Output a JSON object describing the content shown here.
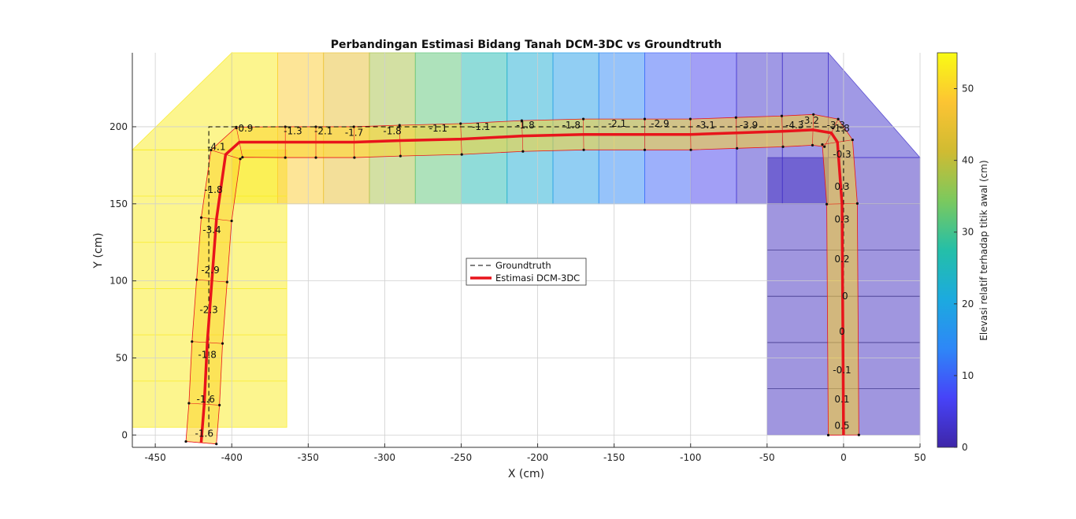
{
  "chart_data": {
    "type": "scatter",
    "title": "Perbandingan Estimasi Bidang Tanah DCM-3DC vs Groundtruth",
    "xlabel": "X (cm)",
    "ylabel": "Y (cm)",
    "xlim": [
      -465,
      50
    ],
    "ylim": [
      -8,
      248
    ],
    "x_ticks": [
      "-450",
      "-400",
      "-350",
      "-300",
      "-250",
      "-200",
      "-150",
      "-100",
      "-50",
      "0",
      "50"
    ],
    "x_tick_values": [
      -450,
      -400,
      -350,
      -300,
      -250,
      -200,
      -150,
      -100,
      -50,
      0,
      50
    ],
    "y_ticks": [
      "0",
      "50",
      "100",
      "150",
      "200"
    ],
    "y_tick_values": [
      0,
      50,
      100,
      150,
      200
    ],
    "grid": true,
    "legend_position": "center",
    "colorbar": {
      "label": "Elevasi relatif terhadap titik awal (cm)",
      "range": [
        0,
        55
      ],
      "tick_labels": [
        "0",
        "10",
        "20",
        "30",
        "40",
        "50"
      ],
      "tick_values": [
        0,
        10,
        20,
        30,
        40,
        50
      ],
      "colormap": [
        "#3e26a8",
        "#4743f8",
        "#2e87f7",
        "#1caadf",
        "#24bfa8",
        "#7bc95e",
        "#d0bb32",
        "#fcc433",
        "#f9fb14"
      ]
    },
    "series": [
      {
        "name": "Groundtruth",
        "style": "dashed",
        "color": "#000000",
        "x": [
          -415,
          -415,
          -415,
          -400,
          0,
          0
        ],
        "y": [
          0,
          180,
          200,
          200,
          200,
          0
        ]
      },
      {
        "name": "Estimasi DCM-3DC",
        "style": "solid",
        "color": "#e8141b",
        "x": [
          -420,
          -418,
          -416,
          -413,
          -410,
          -404,
          -395,
          -365,
          -345,
          -320,
          -290,
          -250,
          -210,
          -170,
          -130,
          -100,
          -70,
          -40,
          -20,
          -8,
          -4,
          -1,
          0
        ],
        "y": [
          -5,
          20,
          60,
          100,
          140,
          182,
          190,
          190,
          190,
          190,
          191,
          192,
          194,
          195,
          195,
          195,
          196,
          197,
          198,
          196,
          190,
          150,
          0
        ]
      }
    ],
    "background_zones": [
      {
        "x0": -465,
        "x1": -364,
        "y0": 5,
        "y1": 185,
        "value": 53
      },
      {
        "x0": -400,
        "x1": -370,
        "y0": 150,
        "y1": 248,
        "value": 53
      },
      {
        "x0": -370,
        "x1": -340,
        "y0": 150,
        "y1": 248,
        "value": 49
      },
      {
        "x0": -340,
        "x1": -310,
        "y0": 150,
        "y1": 248,
        "value": 45
      },
      {
        "x0": -310,
        "x1": -280,
        "y0": 150,
        "y1": 248,
        "value": 38
      },
      {
        "x0": -280,
        "x1": -250,
        "y0": 150,
        "y1": 248,
        "value": 32
      },
      {
        "x0": -250,
        "x1": -220,
        "y0": 150,
        "y1": 248,
        "value": 26
      },
      {
        "x0": -220,
        "x1": -190,
        "y0": 150,
        "y1": 248,
        "value": 22
      },
      {
        "x0": -190,
        "x1": -160,
        "y0": 150,
        "y1": 248,
        "value": 18
      },
      {
        "x0": -160,
        "x1": -130,
        "y0": 150,
        "y1": 248,
        "value": 14
      },
      {
        "x0": -130,
        "x1": -100,
        "y0": 150,
        "y1": 248,
        "value": 10
      },
      {
        "x0": -100,
        "x1": -70,
        "y0": 150,
        "y1": 248,
        "value": 6
      },
      {
        "x0": -70,
        "x1": -40,
        "y0": 150,
        "y1": 248,
        "value": 3
      },
      {
        "x0": -40,
        "x1": -10,
        "y0": 150,
        "y1": 248,
        "value": 3
      },
      {
        "x0": -50,
        "x1": 50,
        "y0": 0,
        "y1": 180,
        "value": 2
      }
    ],
    "segment_labels": [
      {
        "text": "-0.9",
        "x": -392,
        "y": 197
      },
      {
        "text": "-1.3",
        "x": -360,
        "y": 195
      },
      {
        "text": "-2.1",
        "x": -340,
        "y": 195
      },
      {
        "text": "-1.7",
        "x": -320,
        "y": 194
      },
      {
        "text": "-1.8",
        "x": -295,
        "y": 195
      },
      {
        "text": "-1.1",
        "x": -265,
        "y": 197
      },
      {
        "text": "-1.1",
        "x": -237,
        "y": 198
      },
      {
        "text": "-1.8",
        "x": -208,
        "y": 199
      },
      {
        "text": "-1.8",
        "x": -178,
        "y": 199
      },
      {
        "text": "-2.1",
        "x": -148,
        "y": 200
      },
      {
        "text": "-2.9",
        "x": -120,
        "y": 200
      },
      {
        "text": "-3.1",
        "x": -90,
        "y": 199
      },
      {
        "text": "-3.9",
        "x": -62,
        "y": 199
      },
      {
        "text": "-4.3",
        "x": -32,
        "y": 199
      },
      {
        "text": "-3.3",
        "x": -5,
        "y": 199
      },
      {
        "text": "-3.2",
        "x": -22,
        "y": 202
      },
      {
        "text": "-1.8",
        "x": -2,
        "y": 197
      },
      {
        "text": "-4.1",
        "x": -410,
        "y": 185
      },
      {
        "text": "-1.8",
        "x": -412,
        "y": 157
      },
      {
        "text": "-3.4",
        "x": -413,
        "y": 131
      },
      {
        "text": "-2.9",
        "x": -414,
        "y": 105
      },
      {
        "text": "-2.3",
        "x": -415,
        "y": 79
      },
      {
        "text": "-1.8",
        "x": -416,
        "y": 50
      },
      {
        "text": "-1.6",
        "x": -417,
        "y": 21
      },
      {
        "text": "-1.6",
        "x": -418,
        "y": -1
      },
      {
        "text": "-0.3",
        "x": -1,
        "y": 180
      },
      {
        "text": "0.3",
        "x": -1,
        "y": 159
      },
      {
        "text": "0.3",
        "x": -1,
        "y": 138
      },
      {
        "text": "0.2",
        "x": -1,
        "y": 112
      },
      {
        "text": "0",
        "x": 1,
        "y": 88
      },
      {
        "text": "0",
        "x": -1,
        "y": 65
      },
      {
        "text": "-0.1",
        "x": -1,
        "y": 40
      },
      {
        "text": "0.1",
        "x": -1,
        "y": 21
      },
      {
        "text": "0.5",
        "x": -1,
        "y": 4
      }
    ],
    "corridor_fill_value": 50
  }
}
